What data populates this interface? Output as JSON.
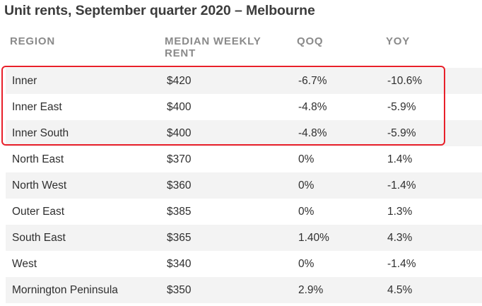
{
  "title": "Unit rents, September quarter 2020 – Melbourne",
  "columns": {
    "region": "REGION",
    "rent": "MEDIAN WEEKLY RENT",
    "qoq": "QOQ",
    "yoy": "YOY"
  },
  "rows": [
    {
      "region": "Inner",
      "rent": "$420",
      "qoq": "-6.7%",
      "yoy": "-10.6%"
    },
    {
      "region": "Inner East",
      "rent": "$400",
      "qoq": "-4.8%",
      "yoy": "-5.9%"
    },
    {
      "region": "Inner South",
      "rent": "$400",
      "qoq": "-4.8%",
      "yoy": "-5.9%"
    },
    {
      "region": "North East",
      "rent": "$370",
      "qoq": "0%",
      "yoy": "1.4%"
    },
    {
      "region": "North West",
      "rent": "$360",
      "qoq": "0%",
      "yoy": "-1.4%"
    },
    {
      "region": "Outer East",
      "rent": "$385",
      "qoq": "0%",
      "yoy": "1.3%"
    },
    {
      "region": "South East",
      "rent": "$365",
      "qoq": "1.40%",
      "yoy": "4.3%"
    },
    {
      "region": "West",
      "rent": "$340",
      "qoq": "0%",
      "yoy": "-1.4%"
    },
    {
      "region": "Mornington Peninsula",
      "rent": "$350",
      "qoq": "2.9%",
      "yoy": "4.5%"
    }
  ],
  "colors": {
    "highlight_border": "#e8202a",
    "alt_row": "#f3f3f3",
    "header_text": "#8a8a8a"
  }
}
